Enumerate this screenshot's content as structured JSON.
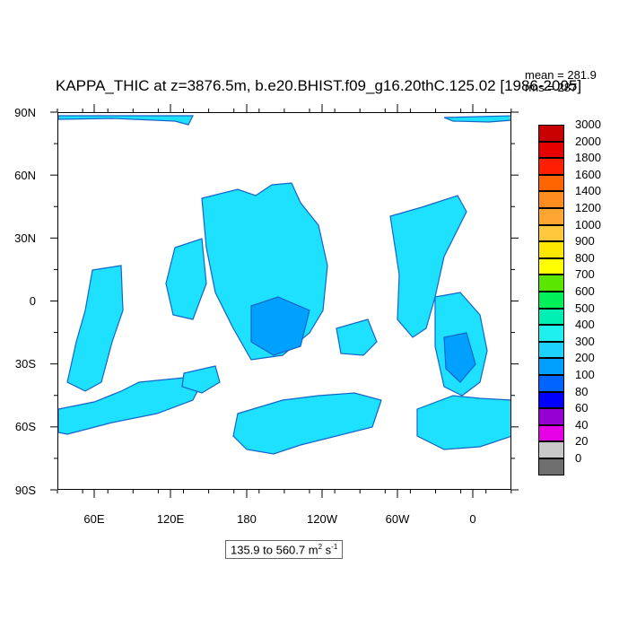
{
  "title": "KAPPA_THIC at z=3876.5m, b.e20.BHIST.f09_g16.20thC.125.02 [1986-2005]",
  "stats": {
    "mean": "mean = 281.9",
    "rms": "rms = 287"
  },
  "lat_ticks": [
    "90N",
    "60N",
    "30N",
    "0",
    "30S",
    "60S",
    "90S"
  ],
  "lon_ticks": [
    "60E",
    "120E",
    "180",
    "120W",
    "60W",
    "0"
  ],
  "colorbar": {
    "levels": [
      "3000",
      "2000",
      "1800",
      "1600",
      "1400",
      "1200",
      "1000",
      "900",
      "800",
      "700",
      "600",
      "500",
      "400",
      "300",
      "200",
      "100",
      "80",
      "60",
      "40",
      "20",
      "0"
    ],
    "colors": [
      "#c80000",
      "#e60000",
      "#ff1e00",
      "#ff6400",
      "#ff8c1e",
      "#ffa532",
      "#ffc83c",
      "#ffe600",
      "#ffff00",
      "#5ae600",
      "#00f05a",
      "#00f0b4",
      "#1ef0f0",
      "#1ed2ff",
      "#00a0ff",
      "#0064ff",
      "#0000ff",
      "#9600d2",
      "#e600e6",
      "#c8c8c8",
      "#6e6e6e"
    ]
  },
  "range": {
    "text": "135.9 to 560.7 m",
    "unit_exp": "2",
    "unit_tail": " s",
    "unit_tail_exp": "-1"
  },
  "map_colors": {
    "ocean_fill": "#1ee1ff",
    "deep_fill": "#00a0ff",
    "coast": "#1464c8",
    "land": "#ffffff"
  }
}
